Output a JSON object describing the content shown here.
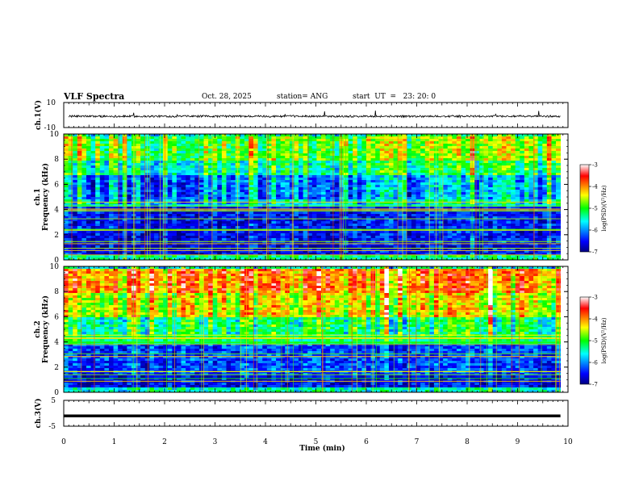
{
  "header": {
    "title": "VLF Spectra",
    "date": "Oct. 28, 2025",
    "station": "station= ANG",
    "start": "start  UT  =   23: 20: 0"
  },
  "chart_data": [
    {
      "type": "line",
      "id": "ch1-waveform",
      "ylabel": "ch.1(V)",
      "ylim": [
        -10,
        10
      ],
      "y_ticks": [
        "10",
        "-10"
      ],
      "xlim": [
        0,
        10
      ],
      "note": "noisy waveform centered near -1 V, roughly ±1 V, with occasional spikes up to ~4 V"
    },
    {
      "type": "heatmap",
      "id": "ch1-spectrogram",
      "ylabel": "ch.1\nFrequency (kHz)",
      "ylabel_lines": [
        "ch.1",
        "Frequency (kHz)"
      ],
      "ylim": [
        0,
        10
      ],
      "y_ticks": [
        "0",
        "2",
        "4",
        "6",
        "8",
        "10"
      ],
      "xlim": [
        0,
        9.85
      ],
      "colorbar": {
        "label": "log(PSD)(V²/Hz)",
        "range": [
          -7,
          -3
        ],
        "ticks": [
          "-3",
          "-4",
          "-5",
          "-6",
          "-7"
        ]
      },
      "bands": [
        {
          "f": [
            0,
            0.5
          ],
          "level": -5.3
        },
        {
          "f": [
            0.5,
            1.5
          ],
          "level": -6.6
        },
        {
          "f": [
            1.5,
            4.4
          ],
          "level": -6.5
        },
        {
          "f": [
            4.4,
            5
          ],
          "level": -5.6
        },
        {
          "f": [
            5,
            6.8
          ],
          "level": -6.0
        },
        {
          "f": [
            6.8,
            8
          ],
          "level": -5.3
        },
        {
          "f": [
            8,
            10
          ],
          "level": -4.8
        }
      ]
    },
    {
      "type": "heatmap",
      "id": "ch2-spectrogram",
      "ylabel": "ch.2\nFrequency (kHz)",
      "ylabel_lines": [
        "ch.2",
        "Frequency (kHz)"
      ],
      "ylim": [
        0,
        10
      ],
      "y_ticks": [
        "0",
        "2",
        "4",
        "6",
        "8",
        "10"
      ],
      "xlim": [
        0,
        9.85
      ],
      "colorbar": {
        "label": "log(PSD)(V²/Hz)",
        "range": [
          -7,
          -3
        ],
        "ticks": [
          "-3",
          "-4",
          "-5",
          "-6",
          "-7"
        ]
      },
      "bands": [
        {
          "f": [
            0,
            0.5
          ],
          "level": -5.5
        },
        {
          "f": [
            0.5,
            1.5
          ],
          "level": -6.6
        },
        {
          "f": [
            1.5,
            4
          ],
          "level": -6.3
        },
        {
          "f": [
            4,
            6
          ],
          "level": -5.3
        },
        {
          "f": [
            6,
            8
          ],
          "level": -4.5
        },
        {
          "f": [
            8,
            10
          ],
          "level": -4.0
        }
      ]
    },
    {
      "type": "line",
      "id": "ch3-waveform",
      "ylabel": "ch.3(V)",
      "ylim": [
        -5,
        5
      ],
      "y_ticks": [
        "5",
        "-5"
      ],
      "xlim": [
        0,
        10
      ],
      "values_constant": -1
    }
  ],
  "x_axis": {
    "label": "Time (min)",
    "ticks": [
      "0",
      "1",
      "2",
      "3",
      "4",
      "5",
      "6",
      "7",
      "8",
      "9",
      "10"
    ]
  }
}
